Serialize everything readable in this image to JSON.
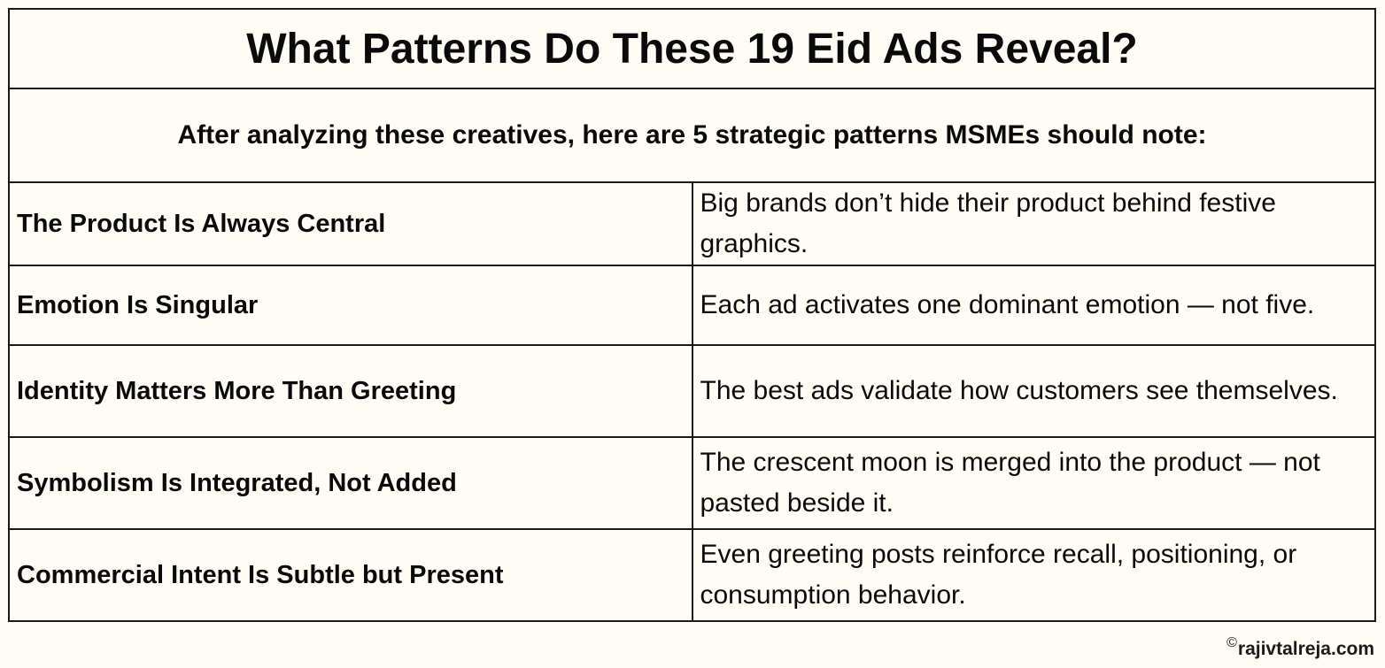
{
  "document": {
    "title": "What Patterns Do These 19 Eid Ads Reveal?",
    "subtitle": "After analyzing these creatives, here are 5 strategic patterns MSMEs should note:",
    "rows": [
      {
        "label": "The Product Is Always Central",
        "description": "Big brands don’t hide their product behind festive graphics."
      },
      {
        "label": "Emotion Is Singular",
        "description": "Each ad activates one dominant emotion — not five."
      },
      {
        "label": "Identity Matters More Than Greeting",
        "description": "The best ads validate how customers see themselves."
      },
      {
        "label": "Symbolism Is Integrated, Not Added",
        "description": "The crescent moon is merged into the product — not pasted beside it."
      },
      {
        "label": "Commercial Intent Is Subtle but Present",
        "description": "Even greeting posts reinforce recall, positioning, or consumption behavior."
      }
    ]
  },
  "footer": {
    "copyright_icon": "copyright-icon",
    "copyright_symbol": "©",
    "credit": "rajivtalreja.com"
  },
  "colors": {
    "background": "#fffcf5",
    "border": "#1a1a1a",
    "text": "#0a0a0a"
  }
}
